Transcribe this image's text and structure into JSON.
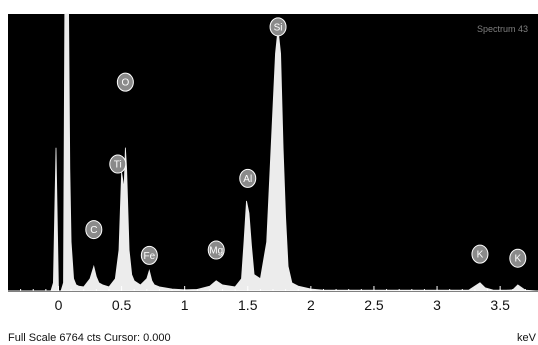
{
  "chart_data": {
    "type": "area",
    "title": "Spectrum 43",
    "xlabel": "keV",
    "ylabel": "",
    "xlim": [
      -0.4,
      3.8
    ],
    "ylim": [
      0,
      6764
    ],
    "x_ticks": [
      "0",
      "0.5",
      "1",
      "1.5",
      "2",
      "2.5",
      "3",
      "3.5"
    ],
    "x_tick_values": [
      0,
      0.5,
      1,
      1.5,
      2,
      2.5,
      3,
      3.5
    ],
    "grid": false,
    "colors": {
      "background": "#000000",
      "spectrum": "#ececec",
      "label_fill": "#8a8a8a",
      "axis": "#ffffff"
    },
    "series": [
      {
        "x": [
          -0.4,
          -0.2,
          -0.1,
          -0.06,
          -0.04,
          -0.02,
          0,
          0.02,
          0.04,
          0.05,
          0.06,
          0.08,
          0.09,
          0.1,
          0.12,
          0.14,
          0.16,
          0.2,
          0.25,
          0.28,
          0.3,
          0.32,
          0.35,
          0.4,
          0.45,
          0.48,
          0.5,
          0.52,
          0.53,
          0.54,
          0.56,
          0.58,
          0.6,
          0.65,
          0.7,
          0.72,
          0.74,
          0.76,
          0.8,
          0.9,
          1.0,
          1.1,
          1.2,
          1.25,
          1.3,
          1.4,
          1.45,
          1.47,
          1.49,
          1.51,
          1.53,
          1.55,
          1.6,
          1.65,
          1.7,
          1.72,
          1.74,
          1.76,
          1.78,
          1.8,
          1.82,
          1.85,
          1.9,
          2.0,
          2.1,
          2.3,
          2.6,
          3.0,
          3.25,
          3.3,
          3.34,
          3.38,
          3.45,
          3.55,
          3.6,
          3.64,
          3.7,
          3.8
        ],
        "y": [
          0,
          0,
          0,
          0,
          200,
          3500,
          0,
          0,
          200,
          6764,
          6764,
          6764,
          3000,
          1200,
          300,
          150,
          120,
          100,
          300,
          600,
          350,
          200,
          150,
          100,
          300,
          1000,
          2900,
          2500,
          3500,
          3000,
          1000,
          400,
          250,
          150,
          300,
          500,
          250,
          150,
          100,
          50,
          30,
          40,
          120,
          250,
          150,
          100,
          300,
          1200,
          2200,
          1900,
          1100,
          400,
          300,
          1200,
          4500,
          5800,
          6400,
          5800,
          3500,
          1800,
          600,
          200,
          120,
          50,
          20,
          20,
          20,
          20,
          20,
          120,
          200,
          80,
          20,
          20,
          30,
          150,
          20,
          0
        ]
      }
    ],
    "peaks": [
      {
        "element": "C",
        "x": 0.28,
        "label_y": 1500
      },
      {
        "element": "O",
        "x": 0.53,
        "label_y": 5100
      },
      {
        "element": "Ti",
        "x": 0.47,
        "label_y": 3100
      },
      {
        "element": "Fe",
        "x": 0.72,
        "label_y": 870
      },
      {
        "element": "Mg",
        "x": 1.25,
        "label_y": 1000
      },
      {
        "element": "Al",
        "x": 1.5,
        "label_y": 2750
      },
      {
        "element": "Si",
        "x": 1.74,
        "label_y": 6450
      },
      {
        "element": "K",
        "x": 3.34,
        "label_y": 900
      },
      {
        "element": "K",
        "x": 3.64,
        "label_y": 800
      }
    ]
  },
  "status": {
    "full_scale": "Full Scale 6764 cts Cursor: 0.000",
    "unit": "keV"
  }
}
